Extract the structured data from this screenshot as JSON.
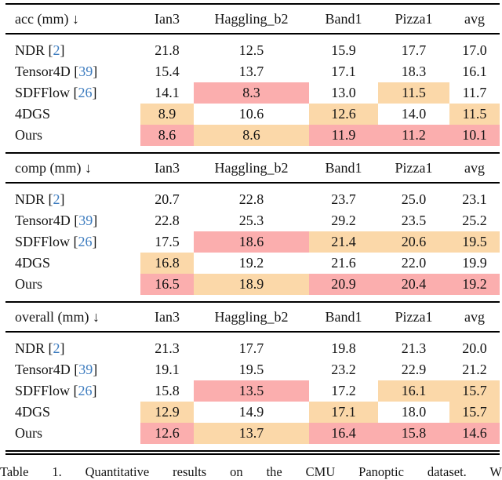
{
  "colors": {
    "best_highlight": "#FBAEAE",
    "second_highlight": "#FBD8A9",
    "citation_blue": "#3D7CBF",
    "rule_black": "#000000",
    "background": "#ffffff"
  },
  "symbols": {
    "cite_open": " [",
    "cite_close": "]"
  },
  "columns": [
    "Ian3",
    "Haggling_b2",
    "Band1",
    "Pizza1",
    "avg"
  ],
  "tables": [
    {
      "metric": "acc (mm) ↓",
      "rows": [
        {
          "method": "NDR",
          "cite": "2",
          "values": [
            "21.8",
            "12.5",
            "15.9",
            "17.7",
            "17.0"
          ],
          "hl": [
            "",
            "",
            "",
            "",
            ""
          ]
        },
        {
          "method": "Tensor4D",
          "cite": "39",
          "values": [
            "15.4",
            "13.7",
            "17.1",
            "18.3",
            "16.1"
          ],
          "hl": [
            "",
            "",
            "",
            "",
            ""
          ]
        },
        {
          "method": "SDFFlow",
          "cite": "26",
          "values": [
            "14.1",
            "8.3",
            "13.0",
            "11.5",
            "11.7"
          ],
          "hl": [
            "",
            "best",
            "",
            "second",
            ""
          ]
        },
        {
          "method": "4DGS",
          "cite": null,
          "values": [
            "8.9",
            "10.6",
            "12.6",
            "14.0",
            "11.5"
          ],
          "hl": [
            "second",
            "",
            "second",
            "",
            "second"
          ]
        },
        {
          "method": "Ours",
          "cite": null,
          "values": [
            "8.6",
            "8.6",
            "11.9",
            "11.2",
            "10.1"
          ],
          "hl": [
            "best",
            "second",
            "best",
            "best",
            "best"
          ]
        }
      ]
    },
    {
      "metric": "comp (mm) ↓",
      "rows": [
        {
          "method": "NDR",
          "cite": "2",
          "values": [
            "20.7",
            "22.8",
            "23.7",
            "25.0",
            "23.1"
          ],
          "hl": [
            "",
            "",
            "",
            "",
            ""
          ]
        },
        {
          "method": "Tensor4D",
          "cite": "39",
          "values": [
            "22.8",
            "25.3",
            "29.2",
            "23.5",
            "25.2"
          ],
          "hl": [
            "",
            "",
            "",
            "",
            ""
          ]
        },
        {
          "method": "SDFFlow",
          "cite": "26",
          "values": [
            "17.5",
            "18.6",
            "21.4",
            "20.6",
            "19.5"
          ],
          "hl": [
            "",
            "best",
            "second",
            "second",
            "second"
          ]
        },
        {
          "method": "4DGS",
          "cite": null,
          "values": [
            "16.8",
            "19.2",
            "21.6",
            "22.0",
            "19.9"
          ],
          "hl": [
            "second",
            "",
            "",
            "",
            ""
          ]
        },
        {
          "method": "Ours",
          "cite": null,
          "values": [
            "16.5",
            "18.9",
            "20.9",
            "20.4",
            "19.2"
          ],
          "hl": [
            "best",
            "second",
            "best",
            "best",
            "best"
          ]
        }
      ]
    },
    {
      "metric": "overall (mm) ↓",
      "rows": [
        {
          "method": "NDR",
          "cite": "2",
          "values": [
            "21.3",
            "17.7",
            "19.8",
            "21.3",
            "20.0"
          ],
          "hl": [
            "",
            "",
            "",
            "",
            ""
          ]
        },
        {
          "method": "Tensor4D",
          "cite": "39",
          "values": [
            "19.1",
            "19.5",
            "23.2",
            "22.9",
            "21.2"
          ],
          "hl": [
            "",
            "",
            "",
            "",
            ""
          ]
        },
        {
          "method": "SDFFlow",
          "cite": "26",
          "values": [
            "15.8",
            "13.5",
            "17.2",
            "16.1",
            "15.7"
          ],
          "hl": [
            "",
            "best",
            "",
            "second",
            "second"
          ]
        },
        {
          "method": "4DGS",
          "cite": null,
          "values": [
            "12.9",
            "14.9",
            "17.1",
            "18.0",
            "15.7"
          ],
          "hl": [
            "second",
            "",
            "second",
            "",
            "second"
          ]
        },
        {
          "method": "Ours",
          "cite": null,
          "values": [
            "12.6",
            "13.7",
            "16.4",
            "15.8",
            "14.6"
          ],
          "hl": [
            "best",
            "second",
            "best",
            "best",
            "best"
          ]
        }
      ]
    }
  ],
  "caption": {
    "text": "Table 1.  Quantitative results on the CMU Panoptic dataset. W"
  }
}
